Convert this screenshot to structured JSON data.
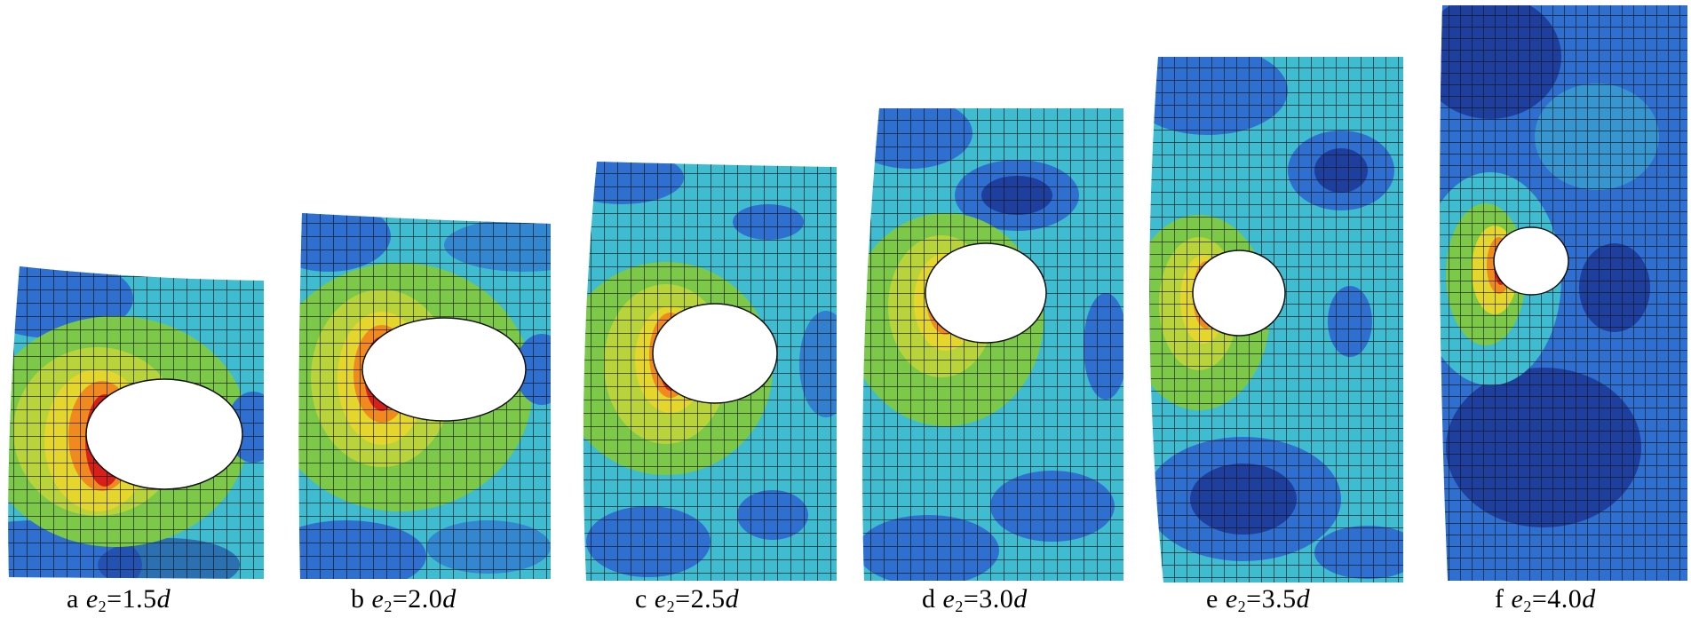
{
  "figure": {
    "panels": [
      {
        "letter": "a",
        "var": "e",
        "sub": "2",
        "value": "=1.5",
        "unit": "d"
      },
      {
        "letter": "b",
        "var": "e",
        "sub": "2",
        "value": "=2.0",
        "unit": "d"
      },
      {
        "letter": "c",
        "var": "e",
        "sub": "2",
        "value": "=2.5",
        "unit": "d"
      },
      {
        "letter": "d",
        "var": "e",
        "sub": "2",
        "value": "=3.0",
        "unit": "d"
      },
      {
        "letter": "e",
        "var": "e",
        "sub": "2",
        "value": "=3.5",
        "unit": "d"
      },
      {
        "letter": "f",
        "var": "e",
        "sub": "2",
        "value": "=4.0",
        "unit": "d"
      }
    ],
    "colors": {
      "deep_blue": "#1e3f9e",
      "blue": "#2f6fd0",
      "cyan": "#3fbcd0",
      "light_cyan": "#5fd0c8",
      "green": "#7cc94a",
      "yellow": "#e4d62a",
      "orange": "#f08a1e",
      "red": "#d8201a",
      "mesh": "#111111"
    }
  }
}
